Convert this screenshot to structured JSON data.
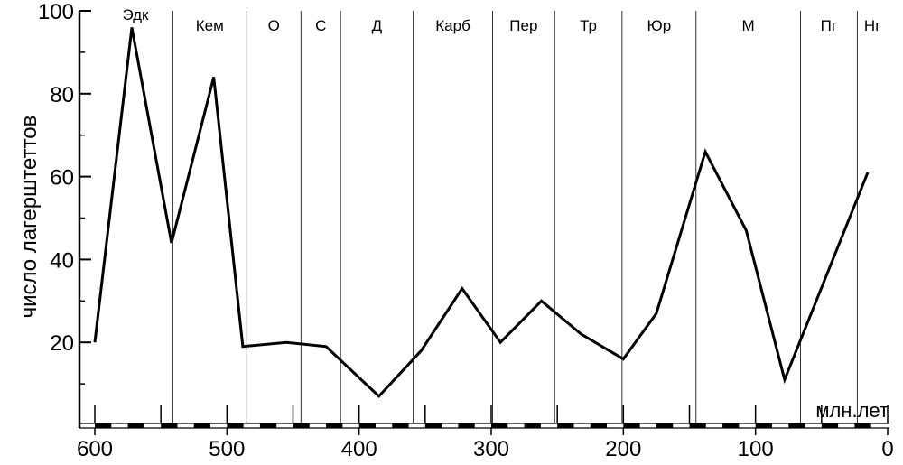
{
  "chart_data": {
    "type": "line",
    "ylabel": "число лагерштеттов",
    "x_unit": "млн.лет",
    "xlim": [
      600,
      0
    ],
    "ylim": [
      0,
      100
    ],
    "x_ticks": [
      "600",
      "500",
      "400",
      "300",
      "200",
      "100",
      "0"
    ],
    "y_ticks": [
      "20",
      "40",
      "60",
      "80",
      "100"
    ],
    "grid": false,
    "series": [
      {
        "x": [
          600,
          572,
          542,
          510,
          488,
          455,
          425,
          385,
          353,
          322,
          293,
          262,
          232,
          200,
          175,
          138,
          107,
          78,
          15
        ],
        "y": [
          20,
          96,
          44,
          84,
          19,
          20,
          19,
          7,
          18,
          33,
          20,
          30,
          22,
          16,
          27,
          66,
          47,
          11,
          61
        ]
      }
    ],
    "periods": [
      {
        "label": "Эдк",
        "start": 620,
        "end": 541
      },
      {
        "label": "Кем",
        "start": 541,
        "end": 485
      },
      {
        "label": "О",
        "start": 485,
        "end": 444
      },
      {
        "label": "С",
        "start": 444,
        "end": 414
      },
      {
        "label": "Д",
        "start": 414,
        "end": 359
      },
      {
        "label": "Карб",
        "start": 359,
        "end": 299
      },
      {
        "label": "Пер",
        "start": 299,
        "end": 252
      },
      {
        "label": "Тр",
        "start": 252,
        "end": 201
      },
      {
        "label": "Юр",
        "start": 201,
        "end": 145
      },
      {
        "label": "М",
        "start": 145,
        "end": 66
      },
      {
        "label": "Пг",
        "start": 66,
        "end": 23
      },
      {
        "label": "Нг",
        "start": 23,
        "end": 0
      }
    ]
  }
}
